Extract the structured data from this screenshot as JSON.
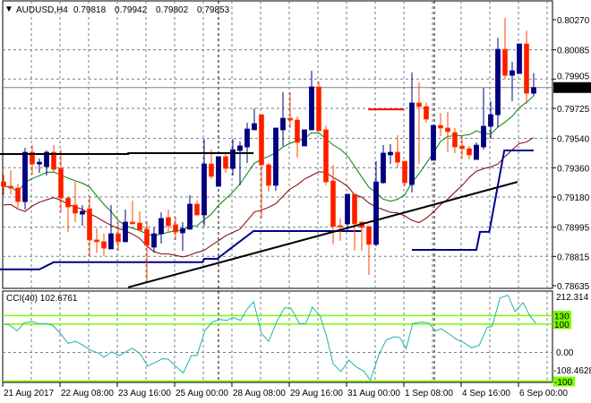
{
  "header": {
    "toggle_icon": "triangle-down-icon",
    "toggle_glyph": "▼",
    "symbol": "AUDUSD,H4",
    "open": "0.79818",
    "high": "0.79942",
    "low": "0.79802",
    "close": "0.79853"
  },
  "colors": {
    "bull": "#000080",
    "bear": "#FF1A00",
    "bear_wick": "#FF4500",
    "ma_fast": "#008000",
    "ma_slow": "#800000",
    "step_line": "#00008B",
    "trend_line": "#000000",
    "resistance_line": "#FF0000",
    "cci_line": "#20B2AA",
    "cci_levels": "#7CFC00",
    "grid": "#708090"
  },
  "chart_data": {
    "type": "candlestick",
    "symbol": "AUDUSD",
    "timeframe": "H4",
    "current_price": "0.79853",
    "ylim": [
      0.78635,
      0.8027
    ],
    "y_ticks": [
      "0.80270",
      "0.80085",
      "0.79905",
      "0.79725",
      "0.79540",
      "0.79360",
      "0.79180",
      "0.78995",
      "0.78815",
      "0.78635"
    ],
    "x_labels": [
      {
        "i": 0,
        "label": "21 Aug 2017"
      },
      {
        "i": 8,
        "label": "22 Aug 08:00"
      },
      {
        "i": 16,
        "label": "23 Aug 16:00"
      },
      {
        "i": 24,
        "label": "25 Aug 00:00"
      },
      {
        "i": 32,
        "label": "28 Aug 08:00"
      },
      {
        "i": 40,
        "label": "29 Aug 16:00"
      },
      {
        "i": 48,
        "label": "31 Aug 00:00"
      },
      {
        "i": 56,
        "label": "1 Sep 08:00"
      },
      {
        "i": 64,
        "label": "4 Sep 16:00"
      },
      {
        "i": 72,
        "label": "6 Sep 00:00"
      }
    ],
    "ohlc": [
      [
        0.79273,
        0.79317,
        0.79191,
        0.79246
      ],
      [
        0.79246,
        0.79345,
        0.79196,
        0.79235
      ],
      [
        0.79235,
        0.79262,
        0.79114,
        0.79152
      ],
      [
        0.79152,
        0.79482,
        0.79103,
        0.79455
      ],
      [
        0.79455,
        0.79499,
        0.79317,
        0.79383
      ],
      [
        0.79383,
        0.79416,
        0.79328,
        0.79394
      ],
      [
        0.79367,
        0.79466,
        0.79312,
        0.79455
      ],
      [
        0.79455,
        0.79499,
        0.79334,
        0.7935
      ],
      [
        0.79356,
        0.79471,
        0.79086,
        0.79174
      ],
      [
        0.79174,
        0.7918,
        0.78965,
        0.79119
      ],
      [
        0.7913,
        0.79273,
        0.79026,
        0.79081
      ],
      [
        0.79075,
        0.7913,
        0.79004,
        0.79092
      ],
      [
        0.79108,
        0.79185,
        0.78817,
        0.78916
      ],
      [
        0.78916,
        0.78987,
        0.78839,
        0.78905
      ],
      [
        0.78905,
        0.78954,
        0.78817,
        0.78866
      ],
      [
        0.78861,
        0.7913,
        0.78861,
        0.78954
      ],
      [
        0.78954,
        0.79026,
        0.7885,
        0.78905
      ],
      [
        0.78905,
        0.79103,
        0.78905,
        0.79026
      ],
      [
        0.79026,
        0.79158,
        0.79015,
        0.79015
      ],
      [
        0.7902,
        0.79092,
        0.78977,
        0.78977
      ],
      [
        0.78982,
        0.79032,
        0.78658,
        0.78883
      ],
      [
        0.78872,
        0.78993,
        0.78839,
        0.78954
      ],
      [
        0.78954,
        0.79086,
        0.78894,
        0.79048
      ],
      [
        0.79054,
        0.79103,
        0.7896,
        0.79004
      ],
      [
        0.7901,
        0.79059,
        0.78916,
        0.78965
      ],
      [
        0.7896,
        0.79026,
        0.7885,
        0.78987
      ],
      [
        0.78982,
        0.79191,
        0.78982,
        0.79136
      ],
      [
        0.79136,
        0.79158,
        0.79065,
        0.7907
      ],
      [
        0.7907,
        0.79538,
        0.78999,
        0.79383
      ],
      [
        0.79383,
        0.79471,
        0.7929,
        0.79307
      ],
      [
        0.79246,
        0.79428,
        0.79246,
        0.79428
      ],
      [
        0.79428,
        0.79455,
        0.79328,
        0.79356
      ],
      [
        0.79356,
        0.79538,
        0.79312,
        0.79471
      ],
      [
        0.79466,
        0.79521,
        0.79252,
        0.79494
      ],
      [
        0.79488,
        0.79637,
        0.79389,
        0.79598
      ],
      [
        0.79593,
        0.79725,
        0.79593,
        0.79631
      ],
      [
        0.79686,
        0.79686,
        0.79048,
        0.79378
      ],
      [
        0.79378,
        0.79389,
        0.79213,
        0.79252
      ],
      [
        0.79252,
        0.79604,
        0.79218,
        0.79604
      ],
      [
        0.79593,
        0.79824,
        0.79494,
        0.79664
      ],
      [
        0.79664,
        0.79824,
        0.79604,
        0.79653
      ],
      [
        0.79653,
        0.79675,
        0.79422,
        0.79516
      ],
      [
        0.79494,
        0.79593,
        0.79494,
        0.79593
      ],
      [
        0.79593,
        0.79956,
        0.79593,
        0.79857
      ],
      [
        0.79857,
        0.7989,
        0.79587,
        0.79587
      ],
      [
        0.79593,
        0.7962,
        0.79252,
        0.79273
      ],
      [
        0.79279,
        0.79378,
        0.78889,
        0.78999
      ],
      [
        0.79004,
        0.79048,
        0.78911,
        0.78999
      ],
      [
        0.79015,
        0.79197,
        0.78977,
        0.79197
      ],
      [
        0.79197,
        0.79197,
        0.7885,
        0.79015
      ],
      [
        0.79026,
        0.79026,
        0.7885,
        0.78993
      ],
      [
        0.78999,
        0.78999,
        0.78702,
        0.78889
      ],
      [
        0.78889,
        0.794,
        0.78878,
        0.79273
      ],
      [
        0.79268,
        0.79499,
        0.79262,
        0.7945
      ],
      [
        0.79439,
        0.79505,
        0.79383,
        0.79455
      ],
      [
        0.79455,
        0.7956,
        0.79362,
        0.79394
      ],
      [
        0.794,
        0.794,
        0.79246,
        0.79268
      ],
      [
        0.79257,
        0.79945,
        0.79208,
        0.79758
      ],
      [
        0.79758,
        0.79884,
        0.79383,
        0.79736
      ],
      [
        0.79736,
        0.79763,
        0.79637,
        0.79659
      ],
      [
        0.79406,
        0.7962,
        0.79406,
        0.7962
      ],
      [
        0.7962,
        0.79697,
        0.79554,
        0.79604
      ],
      [
        0.79604,
        0.79703,
        0.79455,
        0.79582
      ],
      [
        0.79576,
        0.79604,
        0.7945,
        0.79488
      ],
      [
        0.79494,
        0.79554,
        0.79416,
        0.79477
      ],
      [
        0.79477,
        0.79494,
        0.79411,
        0.79439
      ],
      [
        0.79411,
        0.79516,
        0.79411,
        0.79499
      ],
      [
        0.79488,
        0.79851,
        0.79471,
        0.79615
      ],
      [
        0.79615,
        0.79769,
        0.79538,
        0.79686
      ],
      [
        0.79686,
        0.80159,
        0.79609,
        0.80088
      ],
      [
        0.80088,
        0.8028,
        0.79906,
        0.79928
      ],
      [
        0.79928,
        0.80011,
        0.79769,
        0.79956
      ],
      [
        0.79939,
        0.80121,
        0.79939,
        0.80121
      ],
      [
        0.80121,
        0.80203,
        0.79752,
        0.79818
      ],
      [
        0.79818,
        0.79942,
        0.79802,
        0.79853
      ]
    ],
    "step_line": [
      [
        [
          -0.5,
          0.78735
        ],
        [
          5,
          0.78735
        ],
        [
          7,
          0.78779
        ],
        [
          27.8,
          0.78779
        ],
        [
          28,
          0.788
        ],
        [
          29.8,
          0.788
        ],
        [
          34.9,
          0.78971
        ],
        [
          49.9,
          0.78971
        ]
      ],
      [
        [
          57,
          0.78855
        ],
        [
          66,
          0.78855
        ],
        [
          66.5,
          0.78966
        ],
        [
          67.8,
          0.78966
        ],
        [
          69.9,
          0.79466
        ],
        [
          74,
          0.79466
        ]
      ]
    ],
    "horizontal_line": [
      [
        -0.5,
        0.79444
      ],
      [
        17.4,
        0.79444
      ],
      [
        17.4,
        0.7945
      ],
      [
        34.9,
        0.7945
      ]
    ],
    "trend_line": [
      [
        17.4,
        0.78625
      ],
      [
        71.75,
        0.79273
      ]
    ],
    "resistance_line": [
      [
        50.9,
        0.79719
      ],
      [
        55.9,
        0.79719
      ]
    ],
    "cci": {
      "title": "CCI(40) 102.6761",
      "scale_max": "212.314",
      "scale_min": "-108.4628",
      "zero_label": "0.00",
      "levels": [
        {
          "value": 130,
          "label": "130"
        },
        {
          "value": 100,
          "label": "100"
        },
        {
          "value": -100,
          "label": "-100"
        }
      ],
      "points": [
        [
          0,
          100
        ],
        [
          0.8,
          97
        ],
        [
          1.9,
          76
        ],
        [
          2.9,
          105
        ],
        [
          4,
          109
        ],
        [
          4.8,
          102
        ],
        [
          5.9,
          102
        ],
        [
          6.9,
          95
        ],
        [
          8,
          65
        ],
        [
          9,
          32
        ],
        [
          10.1,
          39
        ],
        [
          11.1,
          25
        ],
        [
          12.2,
          7
        ],
        [
          13.3,
          -3
        ],
        [
          14,
          -17
        ],
        [
          15.1,
          2
        ],
        [
          16.2,
          -11
        ],
        [
          17.2,
          4
        ],
        [
          18,
          15
        ],
        [
          19.1,
          -6
        ],
        [
          20.1,
          -48
        ],
        [
          21.2,
          -35
        ],
        [
          22.2,
          -22
        ],
        [
          23,
          -24
        ],
        [
          24.1,
          -51
        ],
        [
          25.1,
          -72
        ],
        [
          26.2,
          -11
        ],
        [
          27,
          -11
        ],
        [
          28.1,
          76
        ],
        [
          29.1,
          107
        ],
        [
          30.2,
          116
        ],
        [
          31.2,
          113
        ],
        [
          32,
          123
        ],
        [
          33.1,
          113
        ],
        [
          33.9,
          150
        ],
        [
          34.9,
          179
        ],
        [
          36,
          67
        ],
        [
          37,
          39
        ],
        [
          38.1,
          107
        ],
        [
          39.2,
          157
        ],
        [
          40.1,
          157
        ],
        [
          41.3,
          102
        ],
        [
          42.2,
          102
        ],
        [
          43.1,
          160
        ],
        [
          44.2,
          128
        ],
        [
          45.1,
          55
        ],
        [
          46,
          -40
        ],
        [
          47.1,
          -68
        ],
        [
          48.2,
          -27
        ],
        [
          49.2,
          -51
        ],
        [
          50.3,
          -66
        ],
        [
          51.2,
          -98
        ],
        [
          52.4,
          -8
        ],
        [
          53.4,
          44
        ],
        [
          54.5,
          55
        ],
        [
          55.3,
          53
        ],
        [
          56.2,
          13
        ],
        [
          57.1,
          102
        ],
        [
          58.2,
          107
        ],
        [
          59.3,
          105
        ],
        [
          60.3,
          76
        ],
        [
          61.1,
          84
        ],
        [
          62.2,
          65
        ],
        [
          63.2,
          46
        ],
        [
          64.3,
          34
        ],
        [
          65.3,
          16
        ],
        [
          66.4,
          25
        ],
        [
          67.5,
          88
        ],
        [
          68.2,
          92
        ],
        [
          69.3,
          192
        ],
        [
          70.4,
          202
        ],
        [
          71.4,
          144
        ],
        [
          72.5,
          176
        ],
        [
          73.5,
          128
        ],
        [
          74.3,
          103
        ]
      ]
    }
  }
}
